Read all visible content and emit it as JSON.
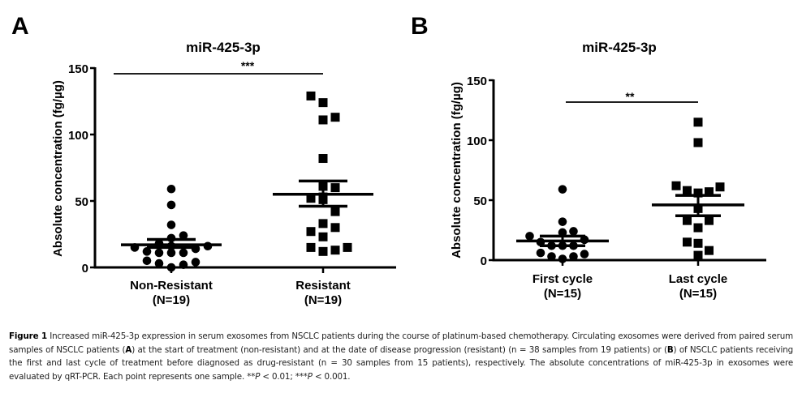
{
  "chart_data": [
    {
      "type": "scatter",
      "panel_label": "A",
      "title": "miR-425-3p",
      "xlabel": "",
      "ylabel": "Absolute concentration (fg/µg)",
      "ylim": [
        0,
        150
      ],
      "yticks": [
        0,
        50,
        100,
        150
      ],
      "grid": false,
      "categories": [
        {
          "name": "Non-Resistant",
          "n_label": "(N=19)"
        },
        {
          "name": "Resistant",
          "n_label": "(N=19)"
        }
      ],
      "series": [
        {
          "name": "Non-Resistant",
          "marker": "circle",
          "values": [
            59,
            47,
            32,
            24,
            22,
            18,
            16,
            16,
            15,
            14,
            12,
            11,
            11,
            11,
            5,
            4,
            3,
            2,
            0
          ],
          "jitter": [
            0,
            0,
            0,
            1,
            0,
            -1,
            0,
            3,
            -3,
            2,
            -2,
            -1,
            0,
            1,
            -2,
            2,
            -1,
            1,
            0
          ],
          "mean": 17,
          "sem": [
            15,
            21
          ]
        },
        {
          "name": "Resistant",
          "marker": "square",
          "values": [
            129,
            124,
            113,
            111,
            82,
            61,
            60,
            53,
            52,
            51,
            42,
            33,
            30,
            27,
            23,
            15,
            15,
            13,
            12
          ],
          "jitter": [
            -1,
            0,
            1,
            0,
            0,
            0,
            1,
            0,
            -1,
            0,
            1,
            0,
            1,
            -1,
            0,
            -1,
            2,
            1,
            0
          ],
          "mean": 55,
          "sem": [
            46,
            65
          ]
        }
      ],
      "significance": {
        "label": "***",
        "between": [
          "Non-Resistant",
          "Resistant"
        ]
      }
    },
    {
      "type": "scatter",
      "panel_label": "B",
      "title": "miR-425-3p",
      "xlabel": "",
      "ylabel": "Absolute concentration (fg/µg)",
      "ylim": [
        0,
        150
      ],
      "yticks": [
        0,
        50,
        100,
        150
      ],
      "grid": false,
      "categories": [
        {
          "name": "First cycle",
          "n_label": "(N=15)"
        },
        {
          "name": "Last cycle",
          "n_label": "(N=15)"
        }
      ],
      "series": [
        {
          "name": "First cycle",
          "marker": "circle",
          "values": [
            59,
            32,
            24,
            23,
            20,
            17,
            15,
            12,
            12,
            12,
            6,
            5,
            3,
            3,
            1
          ],
          "jitter": [
            0,
            0,
            1,
            0,
            -3,
            2,
            -2,
            -1,
            0,
            1,
            -2,
            2,
            -1,
            1,
            0
          ],
          "mean": 16,
          "sem": [
            12,
            20
          ]
        },
        {
          "name": "Last cycle",
          "marker": "square",
          "values": [
            115,
            98,
            62,
            61,
            58,
            57,
            56,
            43,
            33,
            33,
            27,
            15,
            14,
            8,
            4
          ],
          "jitter": [
            0,
            0,
            -2,
            2,
            -1,
            1,
            0,
            0,
            -1,
            1,
            0,
            -1,
            0,
            1,
            0
          ],
          "mean": 46,
          "sem": [
            37,
            54
          ]
        }
      ],
      "significance": {
        "label": "**",
        "between": [
          "First cycle",
          "Last cycle"
        ]
      }
    }
  ],
  "caption": {
    "figure_label": "Figure 1",
    "lines": [
      "Increased miR-425-3p expression in serum exosomes from NSCLC patients during the course of platinum-based chemotherapy. Circulating exosomes were",
      "derived from paired serum samples of NSCLC patients (A) at the start of treatment (non-resistant) and at the date of disease progression (resistant) (n = 38 samples from",
      "19 patients) or (B) of NSCLC patients receiving the first and last cycle of treatment before diagnosed as drug-resistant (n = 30 samples from 15 patients), respectively. The",
      "absolute concentrations of miR-425-3p in exosomes were evaluated by qRT-PCR. Each point represents one sample. **P < 0.01; ***P < 0.001."
    ]
  }
}
